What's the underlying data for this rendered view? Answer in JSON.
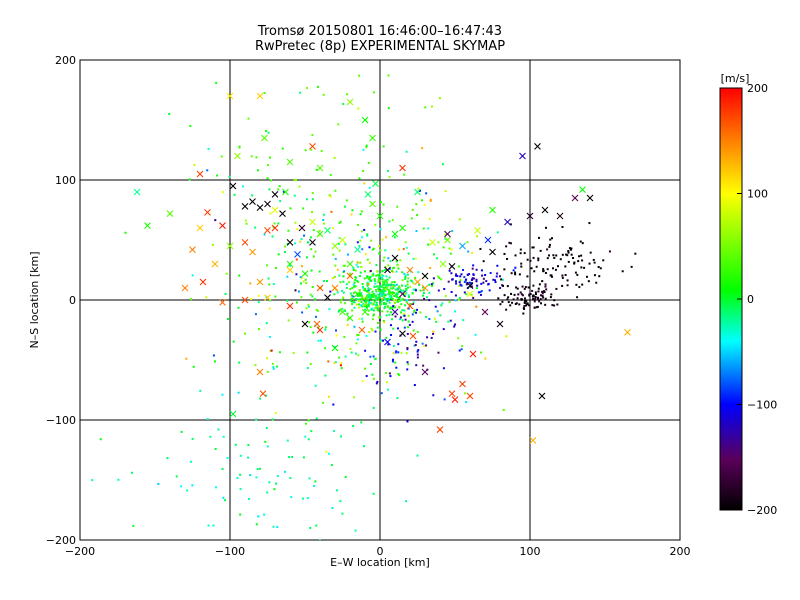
{
  "chart_data": {
    "type": "scatter",
    "title": "Tromsø 20150801 16:46:00–16:47:43",
    "subtitle": "RwPretec (8p) EXPERIMENTAL SKYMAP",
    "xlabel": "E–W location [km]",
    "ylabel": "N–S location [km]",
    "xlim": [
      -200,
      200
    ],
    "ylim": [
      -200,
      200
    ],
    "x_ticks": [
      -200,
      -100,
      0,
      100,
      200
    ],
    "y_ticks": [
      -200,
      -100,
      0,
      100,
      200
    ],
    "x_tick_labels": [
      "−200",
      "−100",
      "0",
      "100",
      "200"
    ],
    "y_tick_labels": [
      "−200",
      "−100",
      "0",
      "100",
      "200"
    ],
    "grid": true,
    "colorbar": {
      "label": "[m/s]",
      "range": [
        -200,
        200
      ],
      "ticks": [
        -200,
        -100,
        0,
        100,
        200
      ],
      "tick_labels": [
        "−200",
        "−100",
        "0",
        "100",
        "200"
      ],
      "colors": [
        "#000000",
        "#5a005a",
        "#0000ff",
        "#00ffff",
        "#00ff00",
        "#ffff00",
        "#ff0000"
      ]
    },
    "series": [
      {
        "marker": "x",
        "points": [
          [
            -120,
            105,
            175
          ],
          [
            -115,
            73,
            175
          ],
          [
            -105,
            62,
            190
          ],
          [
            -98,
            95,
            -200
          ],
          [
            -90,
            78,
            -200
          ],
          [
            -85,
            82,
            -200
          ],
          [
            -80,
            77,
            -200
          ],
          [
            -75,
            80,
            -190
          ],
          [
            -70,
            88,
            -200
          ],
          [
            -65,
            72,
            -200
          ],
          [
            -60,
            48,
            -200
          ],
          [
            -52,
            60,
            -180
          ],
          [
            -45,
            48,
            -190
          ],
          [
            -40,
            55,
            30
          ],
          [
            -35,
            58,
            -10
          ],
          [
            -30,
            45,
            60
          ],
          [
            -25,
            50,
            80
          ],
          [
            -20,
            30,
            30
          ],
          [
            -15,
            42,
            -20
          ],
          [
            -125,
            42,
            150
          ],
          [
            -118,
            15,
            180
          ],
          [
            -80,
            170,
            120
          ],
          [
            -100,
            170,
            110
          ],
          [
            -95,
            120,
            60
          ],
          [
            -77,
            135,
            40
          ],
          [
            -60,
            115,
            40
          ],
          [
            -40,
            110,
            40
          ],
          [
            -20,
            165,
            60
          ],
          [
            -5,
            135,
            30
          ],
          [
            -10,
            150,
            10
          ],
          [
            15,
            110,
            180
          ],
          [
            -45,
            128,
            170
          ],
          [
            -140,
            72,
            40
          ],
          [
            -155,
            62,
            20
          ],
          [
            -162,
            90,
            -20
          ],
          [
            -70,
            75,
            90
          ],
          [
            -75,
            58,
            170
          ],
          [
            -90,
            48,
            170
          ],
          [
            -110,
            30,
            130
          ],
          [
            -85,
            40,
            140
          ],
          [
            -60,
            30,
            20
          ],
          [
            -50,
            22,
            20
          ],
          [
            -30,
            10,
            150
          ],
          [
            -20,
            20,
            160
          ],
          [
            -80,
            15,
            140
          ],
          [
            -90,
            0,
            170
          ],
          [
            -75,
            2,
            120
          ],
          [
            -105,
            -2,
            160
          ],
          [
            -98,
            -95,
            0
          ],
          [
            -80,
            -60,
            150
          ],
          [
            -78,
            -78,
            170
          ],
          [
            -42,
            -20,
            160
          ],
          [
            -50,
            -20,
            -200
          ],
          [
            -60,
            -5,
            180
          ],
          [
            -40,
            10,
            170
          ],
          [
            -35,
            2,
            -200
          ],
          [
            -20,
            -15,
            20
          ],
          [
            -10,
            -10,
            30
          ],
          [
            5,
            25,
            -200
          ],
          [
            10,
            35,
            -200
          ],
          [
            20,
            25,
            150
          ],
          [
            30,
            20,
            -200
          ],
          [
            42,
            30,
            60
          ],
          [
            45,
            50,
            50
          ],
          [
            55,
            45,
            -60
          ],
          [
            72,
            50,
            -90
          ],
          [
            65,
            58,
            80
          ],
          [
            75,
            75,
            20
          ],
          [
            85,
            65,
            -120
          ],
          [
            100,
            70,
            -180
          ],
          [
            110,
            75,
            -200
          ],
          [
            120,
            70,
            -180
          ],
          [
            130,
            85,
            -150
          ],
          [
            135,
            92,
            10
          ],
          [
            140,
            85,
            -200
          ],
          [
            95,
            120,
            -120
          ],
          [
            105,
            128,
            -200
          ],
          [
            75,
            40,
            -200
          ],
          [
            60,
            12,
            -200
          ],
          [
            48,
            28,
            -200
          ],
          [
            30,
            10,
            140
          ],
          [
            25,
            15,
            140
          ],
          [
            20,
            -5,
            170
          ],
          [
            15,
            -28,
            -200
          ],
          [
            10,
            -10,
            -130
          ],
          [
            22,
            -30,
            170
          ],
          [
            30,
            -60,
            -150
          ],
          [
            55,
            -70,
            175
          ],
          [
            60,
            -80,
            175
          ],
          [
            50,
            -83,
            190
          ],
          [
            48,
            -78,
            175
          ],
          [
            40,
            -108,
            175
          ],
          [
            108,
            -80,
            -200
          ],
          [
            102,
            -117,
            130
          ],
          [
            165,
            -27,
            130
          ],
          [
            45,
            55,
            -150
          ],
          [
            35,
            48,
            80
          ],
          [
            10,
            55,
            10
          ],
          [
            0,
            70,
            20
          ],
          [
            -5,
            80,
            40
          ],
          [
            15,
            60,
            20
          ],
          [
            60,
            5,
            90
          ],
          [
            70,
            -10,
            -150
          ],
          [
            80,
            -20,
            -190
          ],
          [
            62,
            -45,
            190
          ],
          [
            -40,
            -25,
            180
          ],
          [
            -30,
            -40,
            10
          ],
          [
            -60,
            25,
            120
          ],
          [
            -55,
            38,
            -80
          ],
          [
            -45,
            65,
            80
          ],
          [
            -70,
            60,
            180
          ],
          [
            -130,
            10,
            150
          ],
          [
            -120,
            60,
            120
          ],
          [
            -100,
            45,
            60
          ],
          [
            -63,
            90,
            20
          ],
          [
            -8,
            88,
            -10
          ],
          [
            25,
            90,
            -10
          ],
          [
            -3,
            97,
            0
          ],
          [
            -15,
            5,
            20
          ],
          [
            -25,
            -10,
            30
          ],
          [
            -12,
            -25,
            160
          ],
          [
            5,
            -35,
            -100
          ],
          [
            15,
            5,
            -150
          ]
        ]
      },
      {
        "marker": "dot",
        "clusters": [
          {
            "center": [
              0,
              5
            ],
            "spread": [
              12,
              10
            ],
            "value_mean": 10,
            "value_spread": 25,
            "count": 420
          },
          {
            "center": [
              -20,
              15
            ],
            "spread": [
              45,
              45
            ],
            "value_mean": 20,
            "value_spread": 60,
            "count": 420
          },
          {
            "center": [
              60,
              15
            ],
            "spread": [
              12,
              6
            ],
            "value_mean": -115,
            "value_spread": 15,
            "count": 80
          },
          {
            "center": [
              100,
              2
            ],
            "spread": [
              10,
              5
            ],
            "value_mean": -190,
            "value_spread": 10,
            "count": 90
          },
          {
            "center": [
              120,
              30
            ],
            "spread": [
              20,
              12
            ],
            "value_mean": -195,
            "value_spread": 8,
            "count": 110
          },
          {
            "center": [
              20,
              -35
            ],
            "spread": [
              20,
              25
            ],
            "value_mean": -110,
            "value_spread": 25,
            "count": 70
          },
          {
            "center": [
              -80,
              -150
            ],
            "spread": [
              40,
              40
            ],
            "value_mean": -20,
            "value_spread": 15,
            "count": 110
          },
          {
            "center": [
              -40,
              120
            ],
            "spread": [
              40,
              40
            ],
            "value_mean": 30,
            "value_spread": 25,
            "count": 70
          }
        ]
      }
    ]
  }
}
